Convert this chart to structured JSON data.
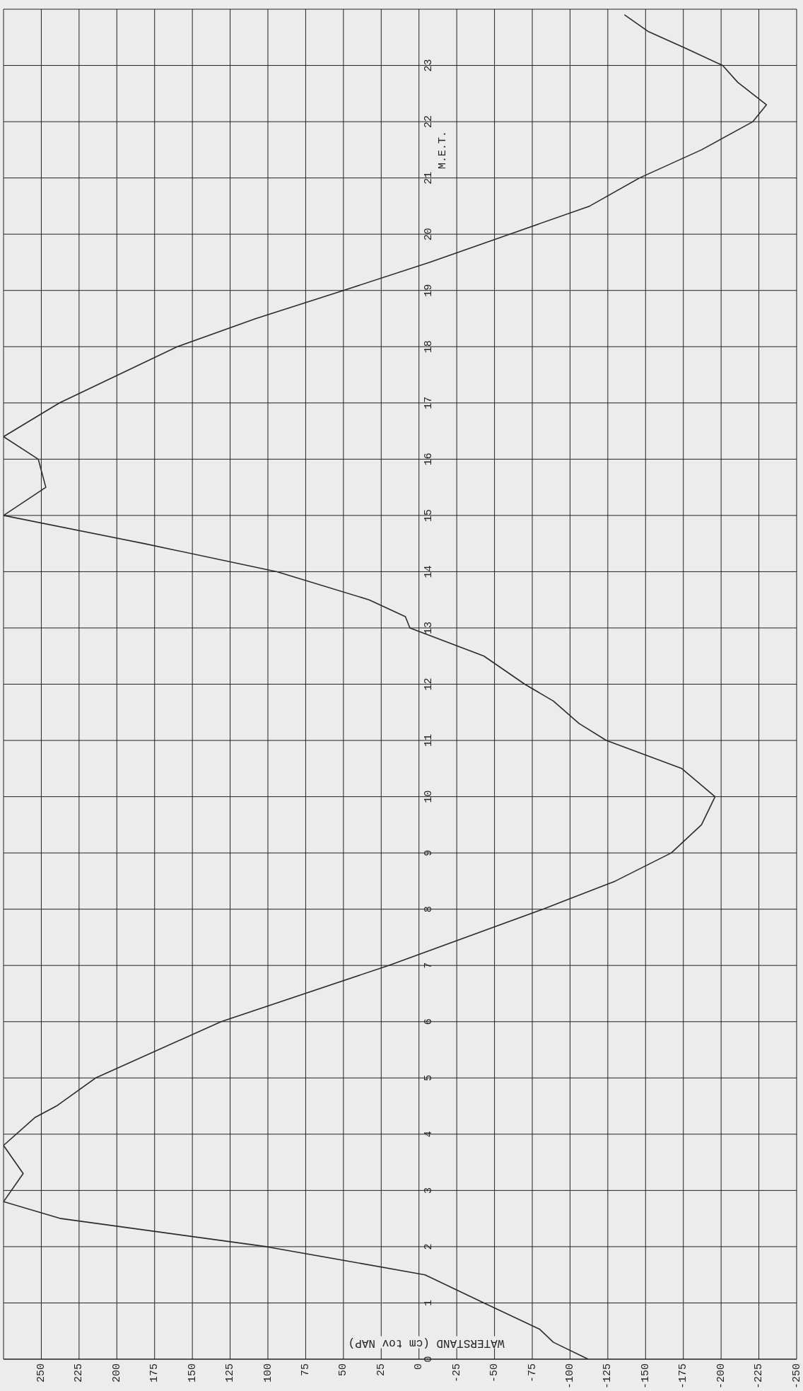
{
  "chart_data": {
    "type": "line",
    "xlabel": "WATERSTAND (cm tov NAP)",
    "ylabel": "M.E.T.",
    "x": [
      -112,
      -89,
      -80,
      -43,
      -4,
      101,
      237,
      275,
      262,
      275,
      254,
      240,
      214,
      131,
      20,
      -82,
      -130,
      -167,
      -187,
      -196,
      -174,
      -124,
      -106,
      -89,
      -70,
      -43,
      6,
      9,
      33,
      94,
      182,
      275,
      247,
      252,
      275,
      238,
      199,
      160,
      108,
      50,
      -7,
      -60,
      -113,
      -146,
      -187,
      -221,
      -230,
      -211,
      -201,
      -177,
      -152,
      -136
    ],
    "values": [
      0,
      0.3,
      0.53,
      1,
      1.5,
      2,
      2.5,
      2.8,
      3.3,
      3.8,
      4.3,
      4.5,
      5,
      6,
      7,
      8,
      8.5,
      9,
      9.5,
      10,
      10.5,
      11,
      11.3,
      11.7,
      12,
      12.5,
      13,
      13.2,
      13.5,
      14,
      14.5,
      15,
      15.5,
      16,
      16.4,
      17,
      17.5,
      18,
      18.5,
      19,
      19.5,
      20,
      20.5,
      21,
      21.5,
      22,
      22.3,
      22.7,
      23,
      23.3,
      23.6,
      23.9
    ],
    "color": "#2a2a2a",
    "xlim": [
      275,
      -250
    ],
    "xticks": [
      250,
      225,
      200,
      175,
      150,
      125,
      100,
      75,
      50,
      25,
      0,
      -25,
      -50,
      -75,
      -100,
      -125,
      -150,
      -175,
      -200,
      -225,
      -250
    ],
    "ylim": [
      0,
      24
    ],
    "yticks": [
      0,
      1,
      2,
      3,
      4,
      5,
      6,
      7,
      8,
      9,
      10,
      11,
      12,
      13,
      14,
      15,
      16,
      17,
      18,
      19,
      20,
      21,
      22,
      23,
      {
        "value": 24,
        "label": null
      }
    ],
    "grid": true
  }
}
